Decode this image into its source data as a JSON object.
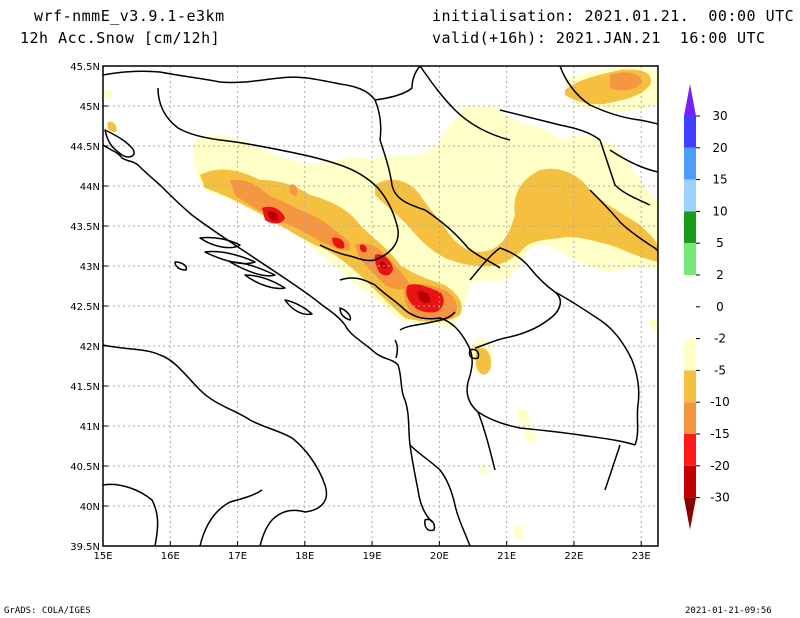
{
  "header": {
    "model": "wrf-nmmE_v3.9.1-e3km",
    "field": "12h Acc.Snow [cm/12h]",
    "init": "initialisation: 2021.01.21.  00:00 UTC",
    "valid": "valid(+16h): 2021.JAN.21  16:00 UTC"
  },
  "footer": {
    "left": "GrADS: COLA/IGES",
    "right": "2021-01-21-09:56"
  },
  "map": {
    "lon_range": [
      15,
      23.25
    ],
    "lat_range": [
      39.5,
      45.5
    ],
    "lon_ticks": [
      "15E",
      "16E",
      "17E",
      "18E",
      "19E",
      "20E",
      "21E",
      "22E",
      "23E"
    ],
    "lat_ticks": [
      "45.5N",
      "45N",
      "44.5N",
      "44N",
      "43.5N",
      "43N",
      "42.5N",
      "42N",
      "41.5N",
      "41N",
      "40.5N",
      "40N",
      "39.5N"
    ]
  },
  "colorbar": {
    "labels": [
      "30",
      "20",
      "15",
      "10",
      "5",
      "2",
      "0",
      "-2",
      "-5",
      "-10",
      "-15",
      "-20",
      "-30"
    ],
    "colors": [
      "#7a1fff",
      "#3f3fff",
      "#4f9cff",
      "#a0d2ff",
      "#1a9c1a",
      "#78e678",
      "#ffffff",
      "#ffffff",
      "#ffffc8",
      "#f5c040",
      "#f59640",
      "#ff1a1a",
      "#c00000",
      "#8c0000"
    ]
  },
  "snow_colors": {
    "light": "#ffffc8",
    "moderate": "#f5c040",
    "heavy": "#f59640",
    "very_heavy": "#e81414",
    "extreme": "#b40000"
  }
}
